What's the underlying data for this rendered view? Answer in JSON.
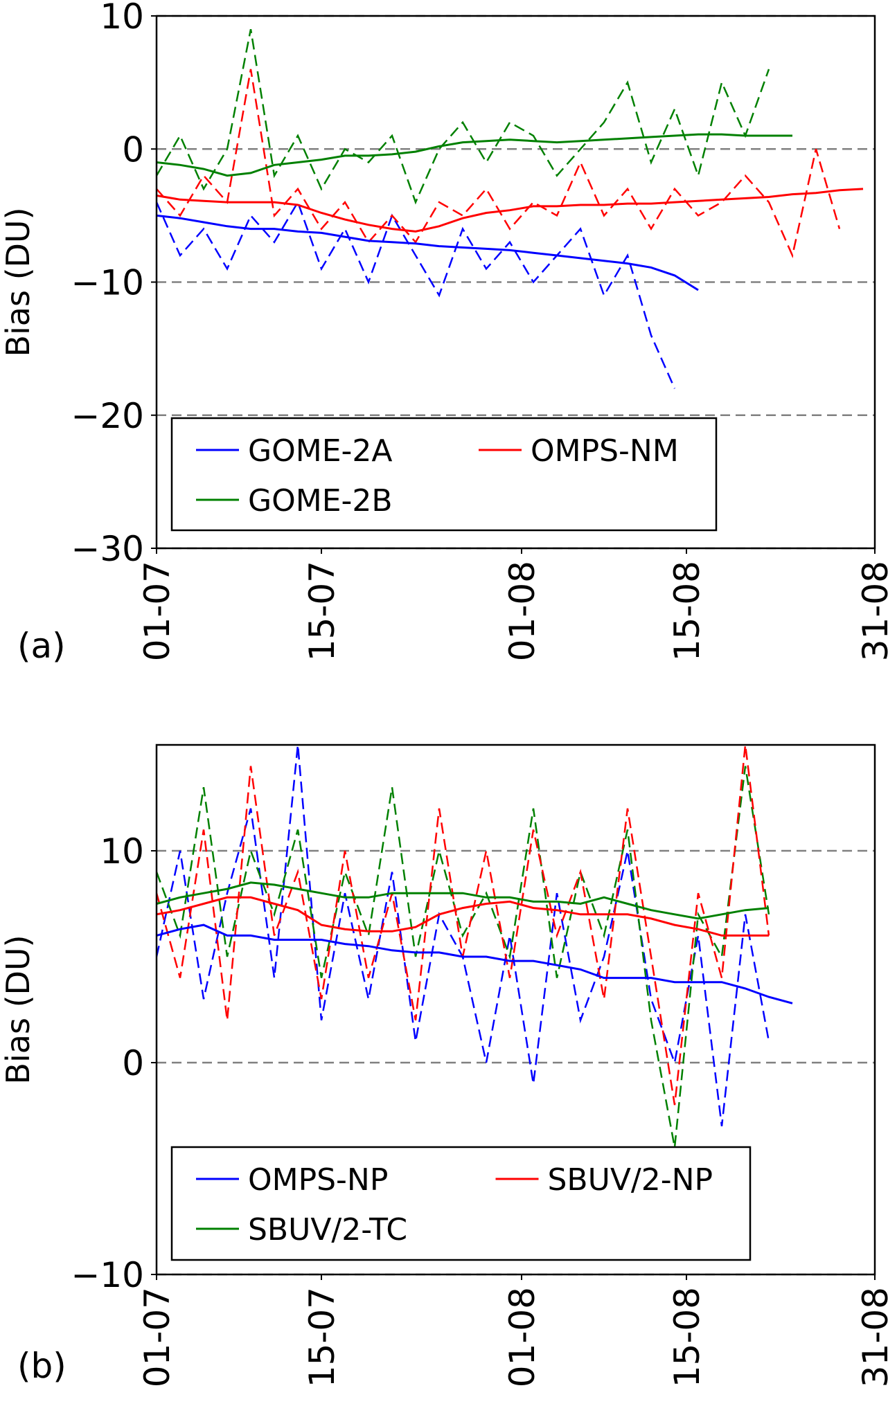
{
  "chart_data": [
    {
      "type": "line",
      "panel_label": "(a)",
      "ylabel": "Bias (DU)",
      "x": [
        "01-07",
        "03-07",
        "05-07",
        "07-07",
        "09-07",
        "11-07",
        "13-07",
        "15-07",
        "17-07",
        "19-07",
        "21-07",
        "23-07",
        "25-07",
        "27-07",
        "29-07",
        "31-07",
        "02-08",
        "04-08",
        "06-08",
        "08-08",
        "10-08",
        "12-08",
        "14-08",
        "16-08",
        "18-08",
        "20-08",
        "22-08",
        "24-08",
        "26-08",
        "28-08",
        "30-08"
      ],
      "xlim": [
        "01-07",
        "31-08"
      ],
      "xticks": [
        "01-07",
        "15-07",
        "01-08",
        "15-08",
        "31-08"
      ],
      "ylim": [
        -30,
        10
      ],
      "yticks": [
        {
          "value": -30,
          "label": "−30"
        },
        {
          "value": -20,
          "label": "−20"
        },
        {
          "value": -10,
          "label": "−10"
        },
        0,
        10
      ],
      "grid": true,
      "legend": "lower left",
      "series": [
        {
          "name": "GOME-2A",
          "color": "#0000ff",
          "values": [
            -5,
            -5.2,
            -5.5,
            -5.8,
            -6,
            -6,
            -6.2,
            -6.3,
            -6.6,
            -6.9,
            -7,
            -7.1,
            -7.3,
            -7.4,
            -7.5,
            -7.6,
            -7.8,
            -8,
            -8.2,
            -8.4,
            -8.6,
            -8.9,
            -9.5,
            -10.6,
            null,
            null,
            null,
            null,
            null,
            null,
            null
          ],
          "daily_values": [
            -4,
            -8,
            -6,
            -9,
            -5,
            -7,
            -4,
            -9,
            -6,
            -10,
            -5,
            -8,
            -11,
            -6,
            -9,
            -7,
            -10,
            -8,
            -6,
            -11,
            -8,
            -14,
            -18,
            null,
            null,
            null,
            null,
            null,
            null,
            null,
            null
          ]
        },
        {
          "name": "GOME-2B",
          "color": "#008000",
          "values": [
            -1,
            -1.2,
            -1.5,
            -2,
            -1.8,
            -1.2,
            -1,
            -0.8,
            -0.5,
            -0.5,
            -0.4,
            -0.2,
            0.2,
            0.5,
            0.6,
            0.7,
            0.6,
            0.5,
            0.6,
            0.7,
            0.8,
            0.9,
            1.0,
            1.1,
            1.1,
            1.0,
            1.0,
            1.0,
            null,
            null,
            null
          ],
          "daily_values": [
            -2,
            1,
            -3,
            0,
            9,
            -2,
            1,
            -3,
            0,
            -1,
            1,
            -4,
            0,
            2,
            -1,
            2,
            1,
            -2,
            0,
            2,
            5,
            -1,
            3,
            -2,
            5,
            1,
            6,
            null,
            null,
            null,
            null
          ]
        },
        {
          "name": "OMPS-NM",
          "color": "#ff0000",
          "values": [
            -3.5,
            -3.8,
            -3.9,
            -4,
            -4,
            -4,
            -4.2,
            -4.8,
            -5.3,
            -5.7,
            -6,
            -6.2,
            -5.8,
            -5.2,
            -4.8,
            -4.6,
            -4.3,
            -4.3,
            -4.2,
            -4.2,
            -4.1,
            -4.1,
            -4,
            -3.9,
            -3.8,
            -3.7,
            -3.6,
            -3.4,
            -3.3,
            -3.1,
            -3
          ],
          "daily_values": [
            -3,
            -5,
            -2,
            -4,
            6,
            -5,
            -3,
            -6,
            -4,
            -7,
            -5,
            -7,
            -4,
            -5,
            -3,
            -6,
            -4,
            -5,
            -1,
            -5,
            -3,
            -6,
            -3,
            -5,
            -4,
            -2,
            -4,
            -8,
            0,
            -6,
            null
          ]
        }
      ]
    },
    {
      "type": "line",
      "panel_label": "(b)",
      "ylabel": "Bias (DU)",
      "x": [
        "01-07",
        "03-07",
        "05-07",
        "07-07",
        "09-07",
        "11-07",
        "13-07",
        "15-07",
        "17-07",
        "19-07",
        "21-07",
        "23-07",
        "25-07",
        "27-07",
        "29-07",
        "31-07",
        "02-08",
        "04-08",
        "06-08",
        "08-08",
        "10-08",
        "12-08",
        "14-08",
        "16-08",
        "18-08",
        "20-08",
        "22-08",
        "24-08",
        "26-08",
        "28-08",
        "30-08"
      ],
      "xlim": [
        "01-07",
        "31-08"
      ],
      "xticks": [
        "01-07",
        "15-07",
        "01-08",
        "15-08",
        "31-08"
      ],
      "ylim": [
        -10,
        15
      ],
      "yticks": [
        {
          "value": -10,
          "label": "−10"
        },
        0,
        10
      ],
      "grid": true,
      "legend": "lower left",
      "series": [
        {
          "name": "OMPS-NP",
          "color": "#0000ff",
          "values": [
            6,
            6.3,
            6.5,
            6,
            6,
            5.8,
            5.8,
            5.8,
            5.6,
            5.5,
            5.3,
            5.2,
            5.2,
            5,
            5,
            4.8,
            4.8,
            4.6,
            4.4,
            4,
            4,
            4,
            3.8,
            3.8,
            3.8,
            3.5,
            3.1,
            2.8,
            null,
            null,
            null
          ],
          "daily_values": [
            5,
            10,
            3,
            8,
            12,
            4,
            15,
            2,
            8,
            3,
            9,
            1,
            7,
            5,
            0,
            6,
            -1,
            8,
            2,
            5,
            10,
            3,
            0,
            6,
            -3,
            7,
            1,
            null,
            null,
            null,
            null
          ]
        },
        {
          "name": "SBUV/2-TC",
          "color": "#008000",
          "values": [
            7.5,
            7.8,
            8,
            8.2,
            8.5,
            8.4,
            8.2,
            8,
            7.8,
            7.8,
            8,
            8,
            8,
            8,
            7.8,
            7.8,
            7.6,
            7.6,
            7.5,
            7.8,
            7.5,
            7.2,
            7.0,
            6.8,
            7,
            7.2,
            7.3,
            null,
            null,
            null,
            null
          ],
          "daily_values": [
            9,
            6,
            13,
            5,
            10,
            7,
            11,
            4,
            9,
            6,
            13,
            5,
            10,
            6,
            8,
            5,
            12,
            4,
            9,
            6,
            11,
            2,
            -4,
            7,
            5,
            14,
            7,
            null,
            null,
            null,
            null
          ]
        },
        {
          "name": "SBUV/2-NP",
          "color": "#ff0000",
          "values": [
            7,
            7.2,
            7.5,
            7.8,
            7.8,
            7.5,
            7.2,
            6.5,
            6.3,
            6.2,
            6.2,
            6.4,
            7,
            7.3,
            7.5,
            7.6,
            7.3,
            7.2,
            7.0,
            7.0,
            7.0,
            6.8,
            6.5,
            6.3,
            6.0,
            6.0,
            6.0,
            null,
            null,
            null,
            null
          ],
          "daily_values": [
            8,
            4,
            11,
            2,
            14,
            6,
            9,
            3,
            10,
            4,
            8,
            2,
            12,
            5,
            10,
            4,
            11,
            6,
            9,
            3,
            12,
            5,
            -2,
            8,
            4,
            15,
            6,
            null,
            null,
            null,
            null
          ]
        }
      ]
    }
  ]
}
